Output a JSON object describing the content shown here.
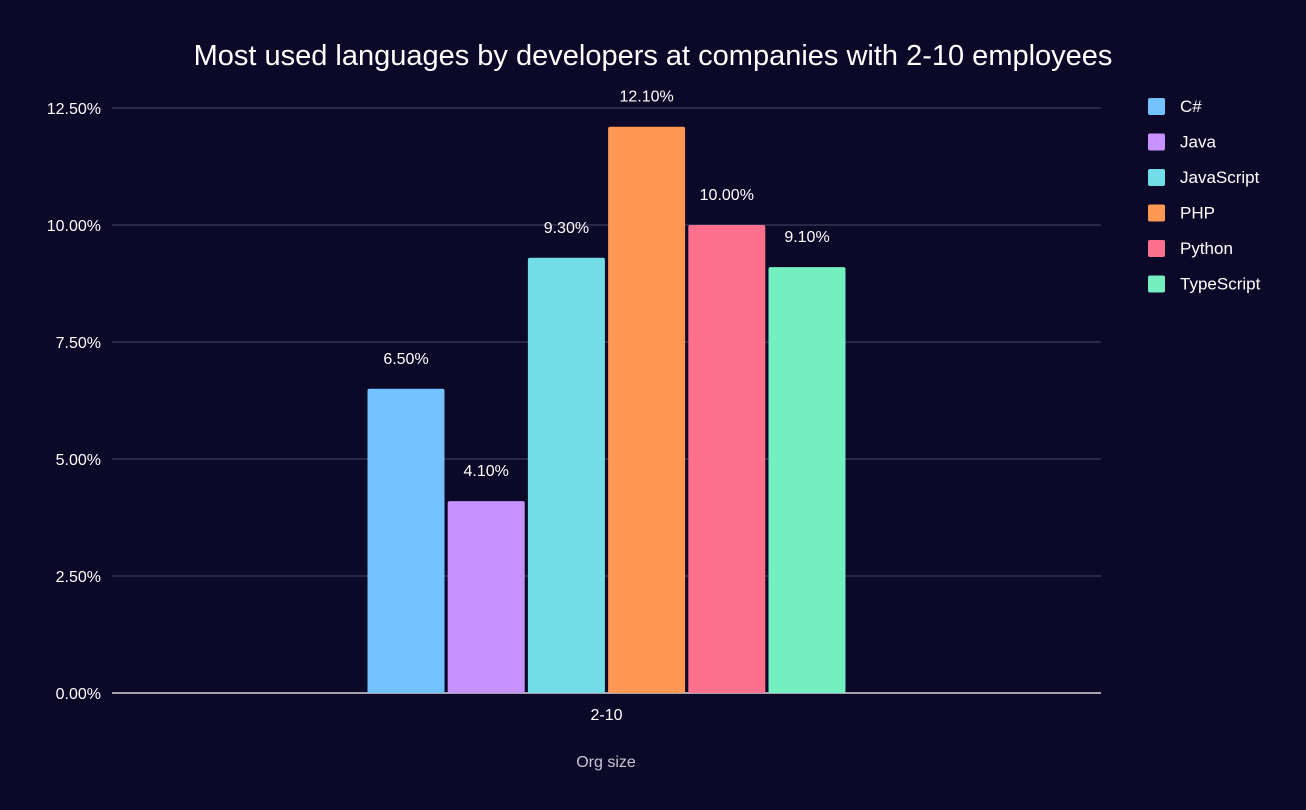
{
  "chart_data": {
    "type": "bar",
    "title": "Most used languages by developers at companies with 2-10 employees",
    "xlabel": "Org size",
    "ylabel": "",
    "categories": [
      "2-10"
    ],
    "series": [
      {
        "name": "C#",
        "values": [
          6.5
        ],
        "label": "6.50%",
        "color": "#74c2ff"
      },
      {
        "name": "Java",
        "values": [
          4.1
        ],
        "label": "4.10%",
        "color": "#c792ff"
      },
      {
        "name": "JavaScript",
        "values": [
          9.3
        ],
        "label": "9.30%",
        "color": "#72dde6"
      },
      {
        "name": "PHP",
        "values": [
          12.1
        ],
        "label": "12.10%",
        "color": "#ff9853"
      },
      {
        "name": "Python",
        "values": [
          10.0
        ],
        "label": "10.00%",
        "color": "#ff6f8e"
      },
      {
        "name": "TypeScript",
        "values": [
          9.1
        ],
        "label": "9.10%",
        "color": "#75efc0"
      }
    ],
    "ylim": [
      0,
      12.5
    ],
    "yticks": [
      0,
      2.5,
      5,
      7.5,
      10,
      12.5
    ],
    "ytick_labels": [
      "0.00%",
      "2.50%",
      "5.00%",
      "7.50%",
      "10.00%",
      "12.50%"
    ],
    "grid": true,
    "legend_position": "right",
    "colors": {
      "background": "#0b0828",
      "gridline": "#4a4766",
      "baseline": "#ffffff",
      "text": "#ffffff",
      "axis_label": "#c9c7d6"
    }
  }
}
